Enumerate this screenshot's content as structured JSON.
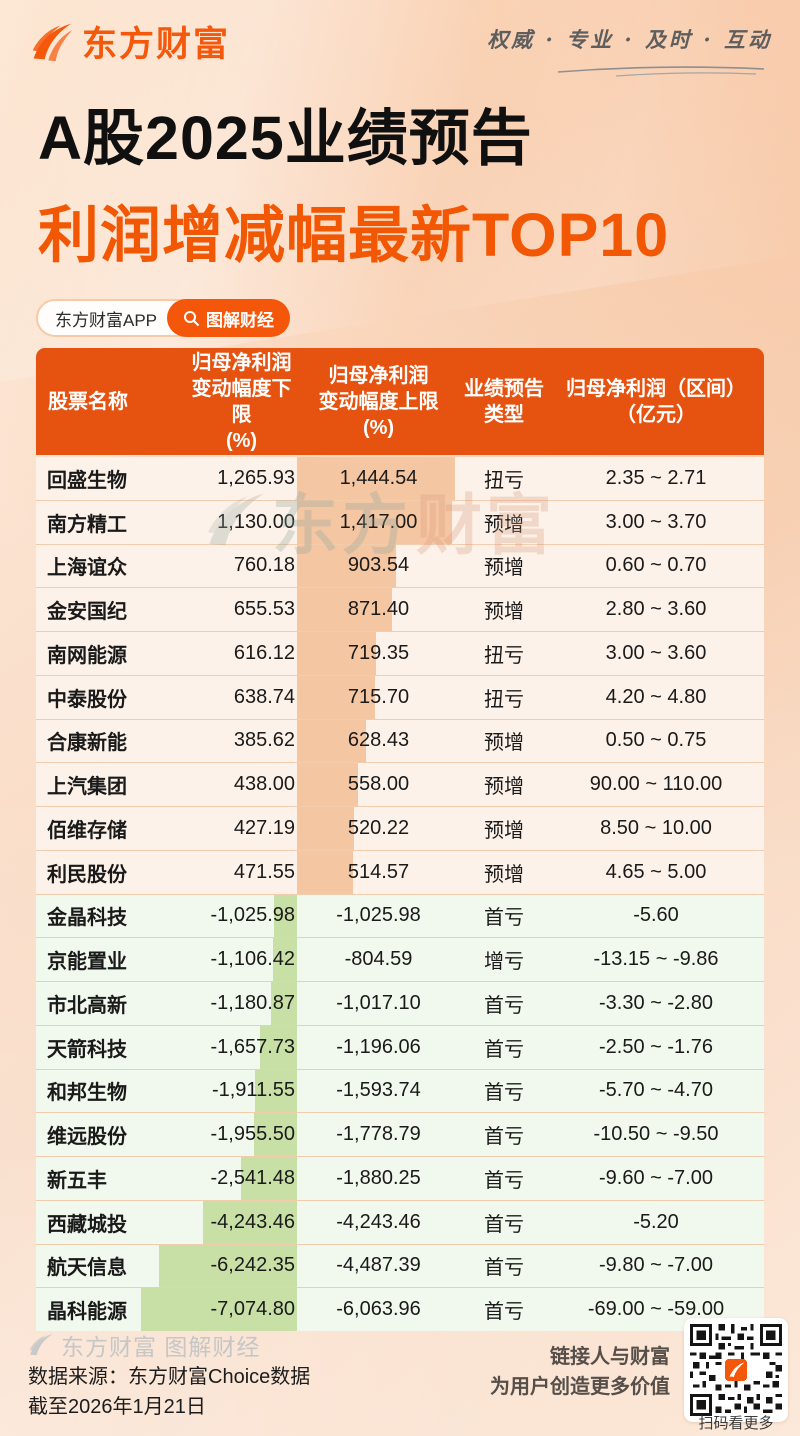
{
  "header": {
    "brand": "东方财富",
    "tagline": "权威 · 专业 · 及时 · 互动"
  },
  "title": {
    "line1": "A股2025业绩预告",
    "line2": "利润增减幅最新TOP10"
  },
  "badges": {
    "app": "东方财富APP",
    "channel": "图解财经"
  },
  "table": {
    "headers": [
      "股票名称",
      "归母净利润\n变动幅度下限\n(%)",
      "归母净利润\n变动幅度上限\n(%)",
      "业绩预告\n类型",
      "归母净利润（区间）\n（亿元）"
    ]
  },
  "chart_data": {
    "type": "table",
    "title": "A股2025业绩预告 利润增减幅最新TOP10",
    "columns": [
      "股票名称",
      "归母净利润变动幅度下限(%)",
      "归母净利润变动幅度上限(%)",
      "业绩预告类型",
      "归母净利润（区间）（亿元）"
    ],
    "bar_encoding": {
      "positive_bar_metric": "upper",
      "negative_bar_metric": "lower",
      "positive_color": "#f5c6a2",
      "negative_color": "#c8dfa6"
    },
    "rows": [
      {
        "name": "回盛生物",
        "lower": 1265.93,
        "upper": 1444.54,
        "lower_text": "1,265.93",
        "upper_text": "1,444.54",
        "type": "扭亏",
        "range": "2.35 ~ 2.71"
      },
      {
        "name": "南方精工",
        "lower": 1130.0,
        "upper": 1417.0,
        "lower_text": "1,130.00",
        "upper_text": "1,417.00",
        "type": "预增",
        "range": "3.00 ~ 3.70"
      },
      {
        "name": "上海谊众",
        "lower": 760.18,
        "upper": 903.54,
        "lower_text": "760.18",
        "upper_text": "903.54",
        "type": "预增",
        "range": "0.60 ~ 0.70"
      },
      {
        "name": "金安国纪",
        "lower": 655.53,
        "upper": 871.4,
        "lower_text": "655.53",
        "upper_text": "871.40",
        "type": "预增",
        "range": "2.80 ~ 3.60"
      },
      {
        "name": "南网能源",
        "lower": 616.12,
        "upper": 719.35,
        "lower_text": "616.12",
        "upper_text": "719.35",
        "type": "扭亏",
        "range": "3.00 ~ 3.60"
      },
      {
        "name": "中泰股份",
        "lower": 638.74,
        "upper": 715.7,
        "lower_text": "638.74",
        "upper_text": "715.70",
        "type": "扭亏",
        "range": "4.20 ~ 4.80"
      },
      {
        "name": "合康新能",
        "lower": 385.62,
        "upper": 628.43,
        "lower_text": "385.62",
        "upper_text": "628.43",
        "type": "预增",
        "range": "0.50 ~ 0.75"
      },
      {
        "name": "上汽集团",
        "lower": 438.0,
        "upper": 558.0,
        "lower_text": "438.00",
        "upper_text": "558.00",
        "type": "预增",
        "range": "90.00 ~ 110.00"
      },
      {
        "name": "佰维存储",
        "lower": 427.19,
        "upper": 520.22,
        "lower_text": "427.19",
        "upper_text": "520.22",
        "type": "预增",
        "range": "8.50 ~ 10.00"
      },
      {
        "name": "利民股份",
        "lower": 471.55,
        "upper": 514.57,
        "lower_text": "471.55",
        "upper_text": "514.57",
        "type": "预增",
        "range": "4.65 ~ 5.00"
      },
      {
        "name": "金晶科技",
        "lower": -1025.98,
        "upper": -1025.98,
        "lower_text": "-1,025.98",
        "upper_text": "-1,025.98",
        "type": "首亏",
        "range": "-5.60"
      },
      {
        "name": "京能置业",
        "lower": -1106.42,
        "upper": -804.59,
        "lower_text": "-1,106.42",
        "upper_text": "-804.59",
        "type": "增亏",
        "range": "-13.15 ~ -9.86"
      },
      {
        "name": "市北高新",
        "lower": -1180.87,
        "upper": -1017.1,
        "lower_text": "-1,180.87",
        "upper_text": "-1,017.10",
        "type": "首亏",
        "range": "-3.30 ~ -2.80"
      },
      {
        "name": "天箭科技",
        "lower": -1657.73,
        "upper": -1196.06,
        "lower_text": "-1,657.73",
        "upper_text": "-1,196.06",
        "type": "首亏",
        "range": "-2.50 ~ -1.76"
      },
      {
        "name": "和邦生物",
        "lower": -1911.55,
        "upper": -1593.74,
        "lower_text": "-1,911.55",
        "upper_text": "-1,593.74",
        "type": "首亏",
        "range": "-5.70 ~ -4.70"
      },
      {
        "name": "维远股份",
        "lower": -1955.5,
        "upper": -1778.79,
        "lower_text": "-1,955.50",
        "upper_text": "-1,778.79",
        "type": "首亏",
        "range": "-10.50 ~ -9.50"
      },
      {
        "name": "新五丰",
        "lower": -2541.48,
        "upper": -1880.25,
        "lower_text": "-2,541.48",
        "upper_text": "-1,880.25",
        "type": "首亏",
        "range": "-9.60 ~ -7.00"
      },
      {
        "name": "西藏城投",
        "lower": -4243.46,
        "upper": -4243.46,
        "lower_text": "-4,243.46",
        "upper_text": "-4,243.46",
        "type": "首亏",
        "range": "-5.20"
      },
      {
        "name": "航天信息",
        "lower": -6242.35,
        "upper": -4487.39,
        "lower_text": "-6,242.35",
        "upper_text": "-4,487.39",
        "type": "首亏",
        "range": "-9.80 ~ -7.00"
      },
      {
        "name": "晶科能源",
        "lower": -7074.8,
        "upper": -6063.96,
        "lower_text": "-7,074.80",
        "upper_text": "-6,063.96",
        "type": "首亏",
        "range": "-69.00 ~ -59.00"
      }
    ]
  },
  "watermark": {
    "part1": "东方",
    "part2": "财富"
  },
  "footer": {
    "logo_text": "东方财富 图解财经",
    "source_line1": "数据来源：东方财富Choice数据",
    "source_line2": "截至2026年1月21日",
    "slogan_line1": "链接人与财富",
    "slogan_line2": "为用户创造更多价值",
    "qr_caption": "扫码看更多"
  },
  "colors": {
    "brand_orange": "#f5570b",
    "title_orange": "#f25704",
    "table_header_orange": "#e6520f",
    "positive_bar": "#f5c6a2",
    "negative_bar": "#c8dfa6",
    "positive_row_bg": "#fdf2e9",
    "negative_row_bg": "#f1f8ed"
  }
}
